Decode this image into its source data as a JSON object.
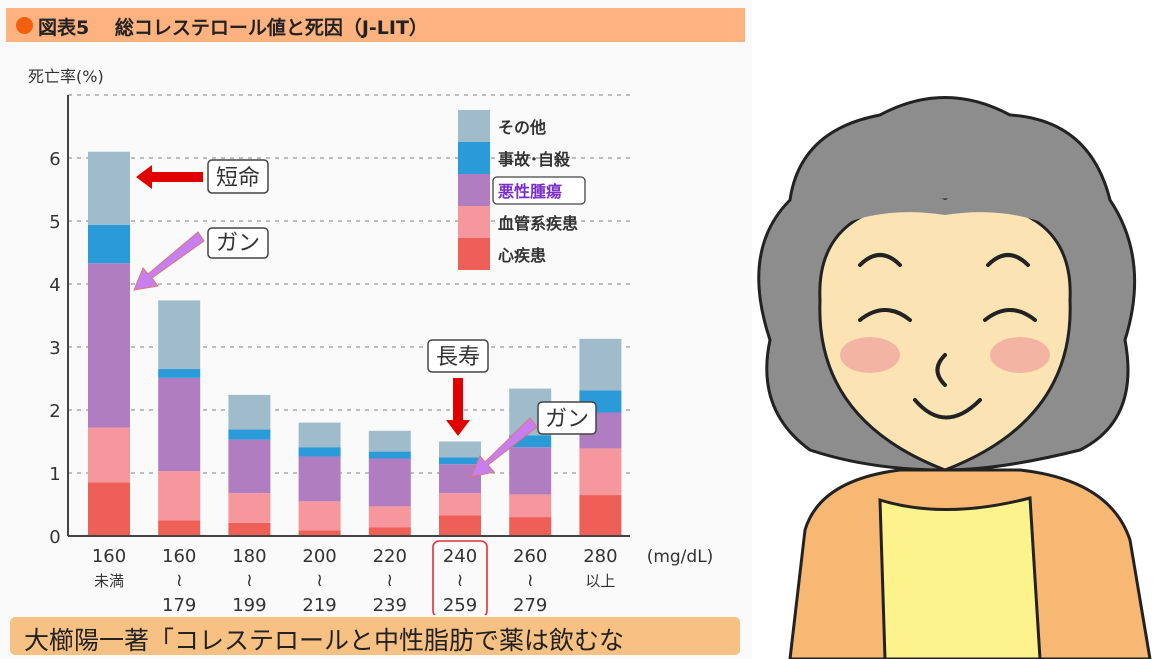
{
  "header": {
    "title": "図表5　 総コレステロール値と死因（J-LIT）"
  },
  "footer": {
    "text": "大櫛陽一著「コレステロールと中性脂肪で薬は飲むな"
  },
  "chart_data": {
    "type": "bar",
    "stacked": true,
    "ylabel": "死亡率(%)",
    "xunit": "(mg/dL)",
    "ylim": [
      0,
      7
    ],
    "yticks": [
      0,
      1,
      2,
      3,
      4,
      5,
      6
    ],
    "grid": true,
    "legend_placement": "top-right",
    "categories": [
      [
        "160",
        "未満",
        ""
      ],
      [
        "160",
        "≀",
        "179"
      ],
      [
        "180",
        "≀",
        "199"
      ],
      [
        "200",
        "≀",
        "219"
      ],
      [
        "220",
        "≀",
        "239"
      ],
      [
        "240",
        "≀",
        "259"
      ],
      [
        "260",
        "≀",
        "279"
      ],
      [
        "280",
        "以上",
        ""
      ]
    ],
    "highlighted_category": 5,
    "series": [
      {
        "name": "心疾患",
        "color": "#ee5f58",
        "values": [
          0.85,
          0.25,
          0.21,
          0.09,
          0.14,
          0.33,
          0.3,
          0.65
        ]
      },
      {
        "name": "血管系疾患",
        "color": "#f5979c",
        "values": [
          0.87,
          0.78,
          0.47,
          0.46,
          0.33,
          0.35,
          0.36,
          0.74
        ]
      },
      {
        "name": "悪性腫瘍",
        "color": "#b07dc0",
        "values": [
          2.61,
          1.48,
          0.85,
          0.71,
          0.76,
          0.46,
          0.75,
          0.57
        ]
      },
      {
        "name": "事故･自殺",
        "color": "#2a9ad8",
        "values": [
          0.61,
          0.14,
          0.16,
          0.15,
          0.11,
          0.11,
          0.19,
          0.35
        ]
      },
      {
        "name": "その他",
        "color": "#a0bccb",
        "values": [
          1.16,
          1.09,
          0.55,
          0.39,
          0.33,
          0.25,
          0.74,
          0.82
        ]
      }
    ],
    "highlighted_legend": "悪性腫瘍",
    "annotations": [
      {
        "text": "短命",
        "target_category": 0,
        "arrow_color": "#e00000"
      },
      {
        "text": "ガン",
        "target_category": 0,
        "arrow_color": "#c77ff0"
      },
      {
        "text": "長寿",
        "target_category": 5,
        "arrow_color": "#e00000"
      },
      {
        "text": "ガン",
        "target_category": 5,
        "arrow_color": "#c77ff0"
      }
    ]
  },
  "illustration": {
    "subject": "smiling elderly woman",
    "hair_color": "#8c8c8c",
    "skin_color": "#fbe3b3",
    "clothing_color": "#f7b873"
  }
}
